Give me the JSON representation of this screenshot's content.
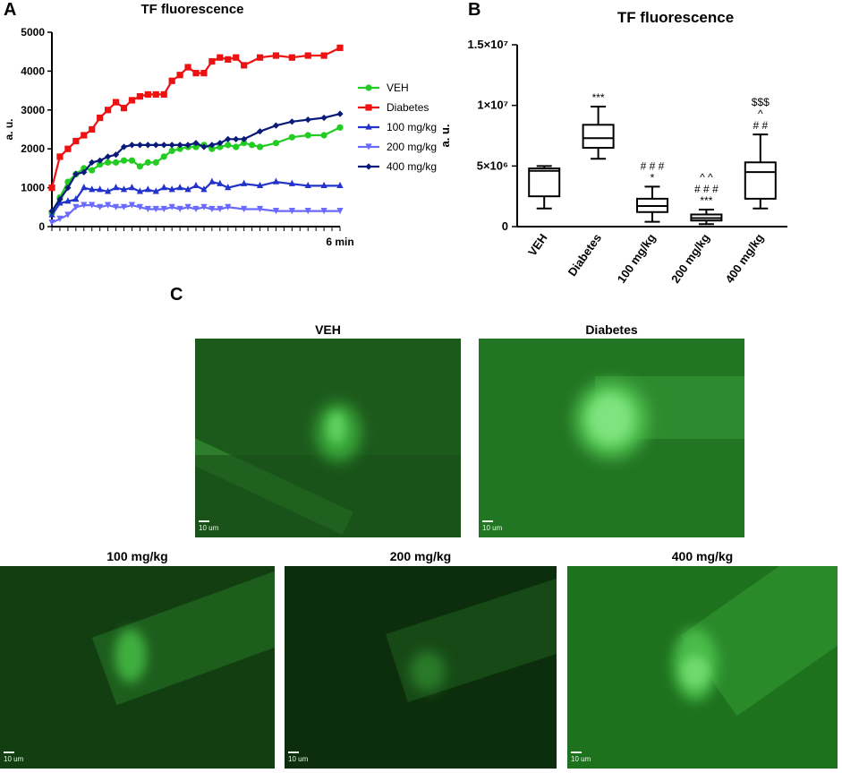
{
  "panels": {
    "a_letter": "A",
    "b_letter": "B",
    "c_letter": "C"
  },
  "chart_data": [
    {
      "type": "line",
      "title": "TF fluorescence",
      "xlabel": "",
      "ylabel": "a. u.",
      "x_end_label": "6 min",
      "ylim": [
        0,
        5000
      ],
      "yticks": [
        0,
        1000,
        2000,
        3000,
        4000,
        5000
      ],
      "x": [
        0,
        1,
        2,
        3,
        4,
        5,
        6,
        7,
        8,
        9,
        10,
        11,
        12,
        13,
        14,
        15,
        16,
        17,
        18,
        19,
        20,
        21,
        22,
        23,
        24,
        25,
        26,
        27,
        28,
        29,
        30,
        31,
        32,
        33,
        34,
        35,
        36
      ],
      "series": [
        {
          "name": "VEH",
          "color": "#22cc22",
          "marker": "circle",
          "points": [
            [
              0,
              350
            ],
            [
              1,
              750
            ],
            [
              2,
              1150
            ],
            [
              3,
              1350
            ],
            [
              4,
              1500
            ],
            [
              5,
              1450
            ],
            [
              6,
              1600
            ],
            [
              7,
              1650
            ],
            [
              8,
              1650
            ],
            [
              9,
              1700
            ],
            [
              10,
              1700
            ],
            [
              11,
              1550
            ],
            [
              12,
              1650
            ],
            [
              13,
              1650
            ],
            [
              14,
              1800
            ],
            [
              15,
              1950
            ],
            [
              16,
              2000
            ],
            [
              17,
              2050
            ],
            [
              18,
              2050
            ],
            [
              19,
              2100
            ],
            [
              20,
              2000
            ],
            [
              21,
              2050
            ],
            [
              22,
              2100
            ],
            [
              23,
              2050
            ],
            [
              24,
              2150
            ],
            [
              25,
              2100
            ],
            [
              26,
              2050
            ],
            [
              28,
              2150
            ],
            [
              30,
              2300
            ],
            [
              32,
              2350
            ],
            [
              34,
              2350
            ],
            [
              36,
              2550
            ]
          ]
        },
        {
          "name": "Diabetes",
          "color": "#ee1111",
          "marker": "square",
          "points": [
            [
              0,
              1000
            ],
            [
              1,
              1800
            ],
            [
              2,
              2000
            ],
            [
              3,
              2200
            ],
            [
              4,
              2350
            ],
            [
              5,
              2500
            ],
            [
              6,
              2800
            ],
            [
              7,
              3000
            ],
            [
              8,
              3200
            ],
            [
              9,
              3050
            ],
            [
              10,
              3250
            ],
            [
              11,
              3350
            ],
            [
              12,
              3400
            ],
            [
              13,
              3400
            ],
            [
              14,
              3400
            ],
            [
              15,
              3750
            ],
            [
              16,
              3900
            ],
            [
              17,
              4100
            ],
            [
              18,
              3950
            ],
            [
              19,
              3950
            ],
            [
              20,
              4250
            ],
            [
              21,
              4350
            ],
            [
              22,
              4300
            ],
            [
              23,
              4350
            ],
            [
              24,
              4150
            ],
            [
              26,
              4350
            ],
            [
              28,
              4400
            ],
            [
              30,
              4350
            ],
            [
              32,
              4400
            ],
            [
              34,
              4400
            ],
            [
              36,
              4600
            ]
          ]
        },
        {
          "name": "100 mg/kg",
          "color": "#2233cc",
          "marker": "triangle",
          "points": [
            [
              0,
              300
            ],
            [
              1,
              600
            ],
            [
              2,
              650
            ],
            [
              3,
              700
            ],
            [
              4,
              1000
            ],
            [
              5,
              950
            ],
            [
              6,
              950
            ],
            [
              7,
              900
            ],
            [
              8,
              1000
            ],
            [
              9,
              950
            ],
            [
              10,
              1000
            ],
            [
              11,
              900
            ],
            [
              12,
              950
            ],
            [
              13,
              900
            ],
            [
              14,
              1000
            ],
            [
              15,
              950
            ],
            [
              16,
              1000
            ],
            [
              17,
              950
            ],
            [
              18,
              1050
            ],
            [
              19,
              950
            ],
            [
              20,
              1150
            ],
            [
              21,
              1100
            ],
            [
              22,
              1000
            ],
            [
              24,
              1100
            ],
            [
              26,
              1050
            ],
            [
              28,
              1150
            ],
            [
              30,
              1100
            ],
            [
              32,
              1050
            ],
            [
              34,
              1050
            ],
            [
              36,
              1050
            ]
          ]
        },
        {
          "name": "200 mg/kg",
          "color": "#6a6aff",
          "marker": "triangle-down",
          "points": [
            [
              0,
              100
            ],
            [
              1,
              200
            ],
            [
              2,
              300
            ],
            [
              3,
              500
            ],
            [
              4,
              550
            ],
            [
              5,
              550
            ],
            [
              6,
              500
            ],
            [
              7,
              550
            ],
            [
              8,
              500
            ],
            [
              9,
              500
            ],
            [
              10,
              550
            ],
            [
              11,
              500
            ],
            [
              12,
              450
            ],
            [
              13,
              450
            ],
            [
              14,
              450
            ],
            [
              15,
              500
            ],
            [
              16,
              450
            ],
            [
              17,
              500
            ],
            [
              18,
              450
            ],
            [
              19,
              500
            ],
            [
              20,
              450
            ],
            [
              21,
              450
            ],
            [
              22,
              500
            ],
            [
              24,
              450
            ],
            [
              26,
              450
            ],
            [
              28,
              400
            ],
            [
              30,
              400
            ],
            [
              32,
              400
            ],
            [
              34,
              400
            ],
            [
              36,
              400
            ]
          ]
        },
        {
          "name": "400 mg/kg",
          "color": "#0a1a7a",
          "marker": "diamond",
          "points": [
            [
              0,
              400
            ],
            [
              1,
              700
            ],
            [
              2,
              1000
            ],
            [
              3,
              1350
            ],
            [
              4,
              1400
            ],
            [
              5,
              1650
            ],
            [
              6,
              1700
            ],
            [
              7,
              1800
            ],
            [
              8,
              1850
            ],
            [
              9,
              2050
            ],
            [
              10,
              2100
            ],
            [
              11,
              2100
            ],
            [
              12,
              2100
            ],
            [
              13,
              2100
            ],
            [
              14,
              2100
            ],
            [
              15,
              2100
            ],
            [
              16,
              2100
            ],
            [
              17,
              2100
            ],
            [
              18,
              2150
            ],
            [
              19,
              2050
            ],
            [
              20,
              2100
            ],
            [
              21,
              2150
            ],
            [
              22,
              2250
            ],
            [
              23,
              2250
            ],
            [
              24,
              2250
            ],
            [
              26,
              2450
            ],
            [
              28,
              2600
            ],
            [
              30,
              2700
            ],
            [
              32,
              2750
            ],
            [
              34,
              2800
            ],
            [
              36,
              2900
            ]
          ]
        }
      ]
    },
    {
      "type": "box",
      "title": "TF fluorescence",
      "ylabel": "a. u.",
      "ylim": [
        0,
        15000000
      ],
      "yticks": [
        {
          "value": 0,
          "label": "0"
        },
        {
          "value": 5000000,
          "label": "5×10⁶"
        },
        {
          "value": 10000000,
          "label": "1×10⁷"
        },
        {
          "value": 15000000,
          "label": "1.5×10⁷"
        }
      ],
      "categories": [
        "VEH",
        "Diabetes",
        "100 mg/kg",
        "200 mg/kg",
        "400 mg/kg"
      ],
      "boxes": [
        {
          "min": 1500000,
          "q1": 2500000,
          "median": 4600000,
          "q3": 4800000,
          "max": 5000000,
          "annotations": []
        },
        {
          "min": 5600000,
          "q1": 6500000,
          "median": 7300000,
          "q3": 8400000,
          "max": 9900000,
          "annotations": [
            "***"
          ]
        },
        {
          "min": 400000,
          "q1": 1200000,
          "median": 1700000,
          "q3": 2300000,
          "max": 3300000,
          "annotations": [
            "# # #",
            "*"
          ]
        },
        {
          "min": 200000,
          "q1": 500000,
          "median": 700000,
          "q3": 1000000,
          "max": 1400000,
          "annotations": [
            "^ ^",
            "# # #",
            "***"
          ]
        },
        {
          "min": 1500000,
          "q1": 2300000,
          "median": 4500000,
          "q3": 5300000,
          "max": 7600000,
          "annotations": [
            "$$$",
            "^",
            "# #"
          ]
        }
      ]
    }
  ],
  "micrographs": [
    {
      "label": "VEH",
      "scale": "10 um"
    },
    {
      "label": "Diabetes",
      "scale": "10 um"
    },
    {
      "label": "100 mg/kg",
      "scale": "10 um"
    },
    {
      "label": "200 mg/kg",
      "scale": "10 um"
    },
    {
      "label": "400 mg/kg",
      "scale": "10 um"
    }
  ]
}
